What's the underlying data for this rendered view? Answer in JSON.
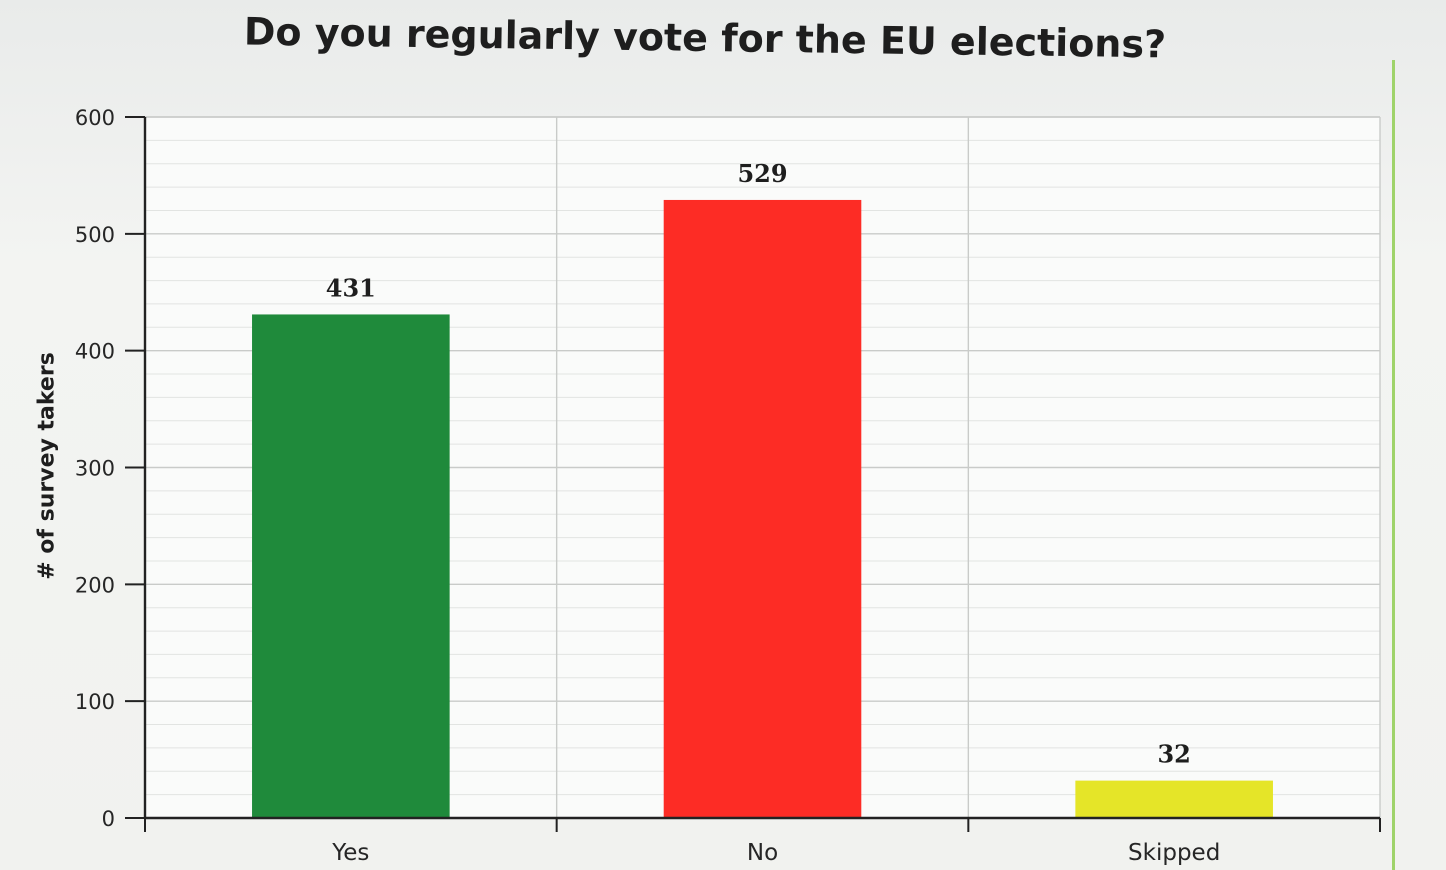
{
  "chart_data": {
    "type": "bar",
    "title": "Do you regularly vote for the EU elections?",
    "xlabel": "",
    "ylabel": "# of survey takers",
    "categories": [
      "Yes",
      "No",
      "Skipped"
    ],
    "values": [
      431,
      529,
      32
    ],
    "value_labels": [
      "431",
      "529",
      "32"
    ],
    "colors": [
      "#1f8a3b",
      "#fd2c25",
      "#e5e528"
    ],
    "ylim": [
      0,
      600
    ],
    "yticks": [
      0,
      100,
      200,
      300,
      400,
      500,
      600
    ],
    "ytick_labels": [
      "0",
      "100",
      "200",
      "300",
      "400",
      "500",
      "600"
    ],
    "grid": true,
    "legend": "none"
  }
}
